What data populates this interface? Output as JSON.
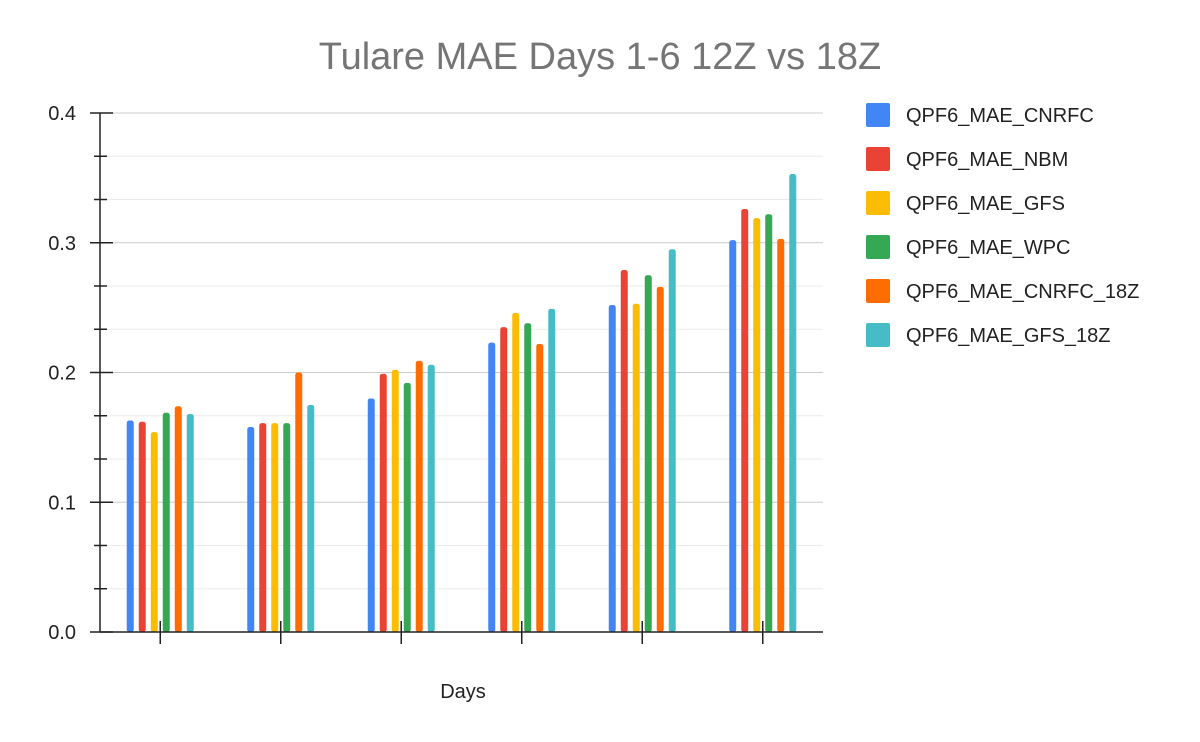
{
  "chart_data": {
    "type": "bar",
    "title": "Tulare MAE Days 1-6 12Z vs 18Z",
    "xlabel": "Days",
    "ylabel": "",
    "categories": [
      "",
      "",
      "",
      "",
      "",
      ""
    ],
    "ylim": [
      0,
      0.4
    ],
    "yticks": [
      "0.0",
      "0.1",
      "0.2",
      "0.3",
      "0.4"
    ],
    "grid": true,
    "legend_position": "right",
    "series": [
      {
        "name": "QPF6_MAE_CNRFC",
        "color": "#4285f4",
        "values": [
          0.163,
          0.158,
          0.18,
          0.223,
          0.252,
          0.302
        ]
      },
      {
        "name": "QPF6_MAE_NBM",
        "color": "#ea4335",
        "values": [
          0.162,
          0.161,
          0.199,
          0.235,
          0.279,
          0.326
        ]
      },
      {
        "name": "QPF6_MAE_GFS",
        "color": "#fbbc04",
        "values": [
          0.154,
          0.161,
          0.202,
          0.246,
          0.253,
          0.319
        ]
      },
      {
        "name": "QPF6_MAE_WPC",
        "color": "#34a853",
        "values": [
          0.169,
          0.161,
          0.192,
          0.238,
          0.275,
          0.322
        ]
      },
      {
        "name": "QPF6_MAE_CNRFC_18Z",
        "color": "#ff6d01",
        "values": [
          0.174,
          0.2,
          0.209,
          0.222,
          0.266,
          0.303
        ]
      },
      {
        "name": "QPF6_MAE_GFS_18Z",
        "color": "#46bdc6",
        "values": [
          0.168,
          0.175,
          0.206,
          0.249,
          0.295,
          0.353
        ]
      }
    ]
  }
}
